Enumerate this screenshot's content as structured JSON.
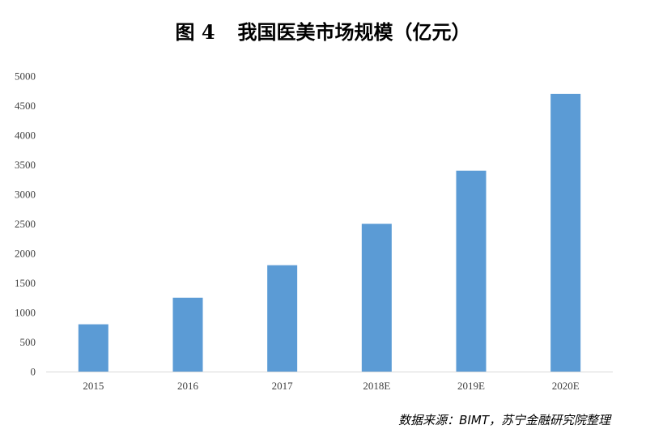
{
  "title": {
    "figure_label": "图 4",
    "text": "我国医美市场规模（亿元）"
  },
  "source": "数据来源：BIMT，苏宁金融研究院整理",
  "colors": {
    "bar": "#5B9BD5",
    "axis": "#D9D9D9",
    "text": "#404040"
  },
  "chart_data": {
    "type": "bar",
    "title": "图 4 我国医美市场规模（亿元）",
    "categories": [
      "2015",
      "2016",
      "2017",
      "2018E",
      "2019E",
      "2020E"
    ],
    "values": [
      800,
      1250,
      1800,
      2500,
      3400,
      4700
    ],
    "ylim": [
      0,
      5000
    ],
    "yticks": [
      "0",
      "500",
      "1000",
      "1500",
      "2000",
      "2500",
      "3000",
      "3500",
      "4000",
      "4500",
      "5000"
    ],
    "grid": false,
    "legend": "none",
    "xlabel": "",
    "ylabel": ""
  }
}
